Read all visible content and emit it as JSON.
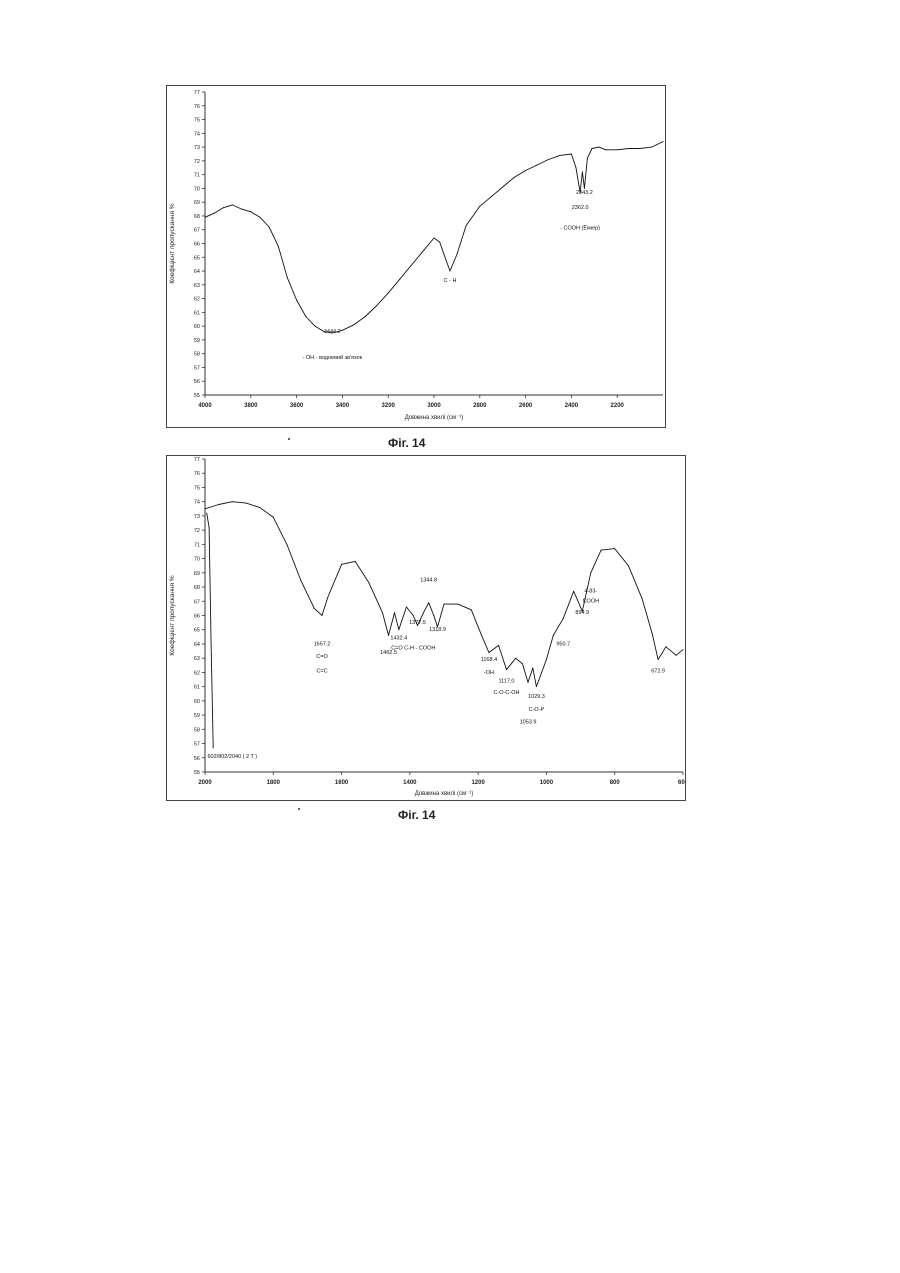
{
  "figures": [
    {
      "caption": "Фіг. 14"
    },
    {
      "caption": "Фіг. 14"
    }
  ],
  "chart_data": [
    {
      "type": "line",
      "title": "",
      "xlabel": "Довжина хвилі (см⁻¹)",
      "ylabel": "Коефіцієнт пропускання %",
      "xlim": [
        4000,
        2000
      ],
      "ylim": [
        55,
        77
      ],
      "x_ticks": [
        "4000",
        "3800",
        "3600",
        "3400",
        "3200",
        "3000",
        "2800",
        "2600",
        "2400",
        "2200"
      ],
      "y_ticks": [
        "55",
        "56",
        "57",
        "58",
        "59",
        "60",
        "61",
        "62",
        "63",
        "64",
        "65",
        "66",
        "67",
        "68",
        "69",
        "70",
        "71",
        "72",
        "73",
        "74",
        "75",
        "76",
        "77"
      ],
      "grid": false,
      "series": [
        {
          "x": [
            4000,
            3960,
            3920,
            3880,
            3840,
            3800,
            3760,
            3720,
            3680,
            3640,
            3600,
            3560,
            3520,
            3480,
            3444.2,
            3400,
            3350,
            3300,
            3250,
            3200,
            3150,
            3100,
            3050,
            3000,
            2975,
            2950,
            2930,
            2900,
            2860,
            2800,
            2750,
            2700,
            2650,
            2600,
            2550,
            2500,
            2450,
            2400,
            2380,
            2362.0,
            2352,
            2343.2,
            2330,
            2310,
            2280,
            2250,
            2200,
            2150,
            2100,
            2050,
            2000
          ],
          "y": [
            67.9,
            68.2,
            68.6,
            68.8,
            68.5,
            68.3,
            67.9,
            67.2,
            65.8,
            63.5,
            61.9,
            60.7,
            60.0,
            59.6,
            59.5,
            59.7,
            60.1,
            60.7,
            61.5,
            62.4,
            63.4,
            64.4,
            65.4,
            66.4,
            66.1,
            64.9,
            64.0,
            65.2,
            67.3,
            68.7,
            69.4,
            70.1,
            70.8,
            71.3,
            71.7,
            72.1,
            72.4,
            72.5,
            71.5,
            69.7,
            71.2,
            70.0,
            72.2,
            72.9,
            73.0,
            72.8,
            72.8,
            72.9,
            72.9,
            73.0,
            73.4
          ]
        }
      ],
      "annotations": [
        {
          "text": "3444.2",
          "x": 3444.2,
          "y": 59.5
        },
        {
          "text": "- OH - водневий зв'язок",
          "x": 3444.2,
          "y": 57.6
        },
        {
          "text": "C - H",
          "x": 2930,
          "y": 63.2
        },
        {
          "text": "2362.0",
          "x": 2362.0,
          "y": 68.5
        },
        {
          "text": "2343.2",
          "x": 2343.2,
          "y": 69.6
        },
        {
          "text": "- COOH (Ёiмер)",
          "x": 2362.0,
          "y": 67.0
        }
      ]
    },
    {
      "type": "line",
      "title": "",
      "xlabel": "Довжина хвилі (см⁻¹)",
      "ylabel": "Коефіцієнт пропускання %",
      "xlim": [
        2000,
        600
      ],
      "ylim": [
        55,
        77
      ],
      "x_ticks": [
        "2000",
        "1800",
        "1600",
        "1400",
        "1200",
        "1000",
        "800",
        "600"
      ],
      "y_ticks": [
        "55",
        "56",
        "57",
        "58",
        "59",
        "60",
        "61",
        "62",
        "63",
        "64",
        "65",
        "66",
        "67",
        "68",
        "69",
        "70",
        "71",
        "72",
        "73",
        "74",
        "75",
        "76",
        "77"
      ],
      "grid": false,
      "series": [
        {
          "x": [
            2000,
            1960,
            1920,
            1880,
            1840,
            1800,
            1760,
            1720,
            1680,
            1657.2,
            1640,
            1600,
            1560,
            1520,
            1480,
            1462.5,
            1445,
            1432.4,
            1410,
            1390,
            1377.5,
            1360,
            1344.8,
            1330,
            1318.9,
            1300,
            1260,
            1220,
            1190,
            1168.4,
            1140,
            1117.0,
            1090,
            1070,
            1053.9,
            1040,
            1029.3,
            1000,
            980,
            950.7,
            920,
            894.9,
            870,
            840,
            800,
            760,
            720,
            690,
            672.9,
            650,
            620,
            600
          ],
          "y": [
            73.5,
            73.8,
            74.0,
            73.9,
            73.6,
            72.9,
            71.0,
            68.5,
            66.5,
            66.0,
            67.3,
            69.6,
            69.8,
            68.3,
            66.2,
            64.6,
            66.2,
            65.0,
            66.6,
            66.0,
            65.3,
            66.2,
            66.9,
            66.0,
            65.2,
            66.8,
            66.8,
            66.4,
            64.6,
            63.4,
            63.9,
            62.2,
            63.0,
            62.6,
            61.3,
            62.3,
            61.0,
            62.9,
            64.6,
            65.8,
            67.7,
            66.3,
            69.0,
            70.6,
            70.7,
            69.5,
            67.2,
            64.7,
            62.9,
            63.8,
            63.2,
            63.6
          ]
        },
        {
          "x": [
            1995,
            1988,
            1982,
            1976
          ],
          "y": [
            73.2,
            72.2,
            64.0,
            56.7
          ]
        }
      ],
      "annotations": [
        {
          "text": "1657.2",
          "x": 1657.2,
          "y": 63.9
        },
        {
          "text": "C=O",
          "x": 1657.2,
          "y": 63.0
        },
        {
          "text": "C=C",
          "x": 1657.2,
          "y": 62.0
        },
        {
          "text": "1462.5",
          "x": 1462.5,
          "y": 63.3
        },
        {
          "text": "1432.4",
          "x": 1432.4,
          "y": 64.3
        },
        {
          "text": "C=O C-H - COOH",
          "x": 1390,
          "y": 63.6
        },
        {
          "text": "1377.5",
          "x": 1377.5,
          "y": 65.4
        },
        {
          "text": "1344.8",
          "x": 1344.8,
          "y": 68.4
        },
        {
          "text": "1318.9",
          "x": 1318.9,
          "y": 64.9
        },
        {
          "text": "1168.4",
          "x": 1168.4,
          "y": 62.8
        },
        {
          "text": "-OH",
          "x": 1168.4,
          "y": 61.9
        },
        {
          "text": "1117.0",
          "x": 1117.0,
          "y": 61.3
        },
        {
          "text": "C-O-C-OH",
          "x": 1117.0,
          "y": 60.5
        },
        {
          "text": "1053.9",
          "x": 1053.9,
          "y": 58.4
        },
        {
          "text": "1029.3",
          "x": 1029.3,
          "y": 60.2
        },
        {
          "text": "C-O-P",
          "x": 1029.3,
          "y": 59.3
        },
        {
          "text": "950.7",
          "x": 950.7,
          "y": 63.9
        },
        {
          "text": "894.9",
          "x": 894.9,
          "y": 66.1
        },
        {
          "text": "4-83-",
          "x": 870,
          "y": 67.6
        },
        {
          "text": "COOH",
          "x": 870,
          "y": 66.9
        },
        {
          "text": "672.9",
          "x": 672.9,
          "y": 62.0
        },
        {
          "text": "602/802/2040 ( 2 T )",
          "x": 1920,
          "y": 56.0
        }
      ]
    }
  ]
}
